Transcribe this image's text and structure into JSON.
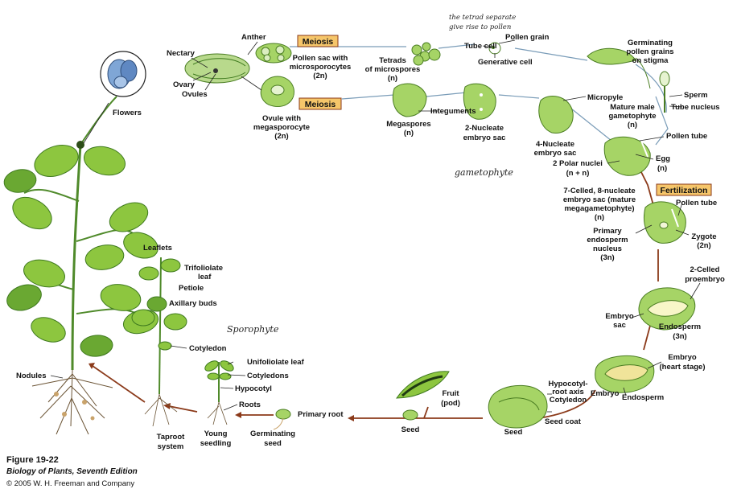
{
  "colors": {
    "plant_green": "#8dc63f",
    "cycle_arrow": "#8b3a1a",
    "highlight_box": "#f6c66a",
    "flower_blue": "#7fa6d6"
  },
  "labels": {
    "flowers": "Flowers",
    "nectary": "Nectary",
    "ovary": "Ovary",
    "ovules": "Ovules",
    "anther": "Anther",
    "meiosis_top": "Meiosis",
    "meiosis_bottom": "Meiosis",
    "pollen_sac_1": "Pollen sac with",
    "pollen_sac_2": "microsporocytes",
    "pollen_sac_3": "(2n)",
    "ovule_1": "Ovule with",
    "ovule_2": "megasporocyte",
    "ovule_3": "(2n)",
    "tetrads_1": "Tetrads",
    "tetrads_2": "of microspores",
    "tetrads_3": "(n)",
    "tube_cell": "Tube cell",
    "pollen_grain": "Pollen grain",
    "generative_cell": "Generative cell",
    "germ_1": "Germinating",
    "germ_2": "pollen grains",
    "germ_3": "on stigma",
    "sperm": "Sperm",
    "tube_nucleus": "Tube nucleus",
    "mature_male_1": "Mature male",
    "mature_male_2": "gametophyte",
    "mature_male_3": "(n)",
    "integuments": "Integuments",
    "megaspores_1": "Megaspores",
    "megaspores_2": "(n)",
    "two_nucleate_1": "2-Nucleate",
    "two_nucleate_2": "embryo sac",
    "micropyle": "Micropyle",
    "four_nucleate_1": "4-Nucleate",
    "four_nucleate_2": "embryo sac",
    "pollen_tube_1": "Pollen tube",
    "egg_1": "Egg",
    "egg_2": "(n)",
    "polar_1": "2 Polar nuclei",
    "polar_2": "(n + n)",
    "fertilization": "Fertilization",
    "pollen_tube_2": "Pollen tube",
    "seven_1": "7-Celled, 8-nucleate",
    "seven_2": "embryo sac (mature",
    "seven_3": "megagametophyte)",
    "seven_4": "(n)",
    "primary_endo_1": "Primary",
    "primary_endo_2": "endosperm",
    "primary_endo_3": "nucleus",
    "primary_endo_4": "(3n)",
    "zygote_1": "Zygote",
    "zygote_2": "(2n)",
    "proembryo_1": "2-Celled",
    "proembryo_2": "proembryo",
    "embryo_sac_1": "Embryo",
    "embryo_sac_2": "sac",
    "endosperm_3n_1": "Endosperm",
    "endosperm_3n_2": "(3n)",
    "embryo_heart_1": "Embryo",
    "embryo_heart_2": "(heart stage)",
    "embryo": "Embryo",
    "endosperm": "Endosperm",
    "hypocotyl_axis_1": "Hypocotyl-",
    "hypocotyl_axis_2": "root axis",
    "cotyledon": "Cotyledon",
    "seed_coat": "Seed coat",
    "seed_big": "Seed",
    "seed_small": "Seed",
    "fruit_1": "Fruit",
    "fruit_2": "(pod)",
    "primary_root": "Primary root",
    "germ_seed_1": "Germinating",
    "germ_seed_2": "seed",
    "unifoliolate": "Unifoliolate leaf",
    "cotyledons": "Cotyledons",
    "hypocotyl": "Hypocotyl",
    "roots": "Roots",
    "young_1": "Young",
    "young_2": "seedling",
    "leaflets": "Leaflets",
    "trifoliolate_1": "Trifoliolate",
    "trifoliolate_2": "leaf",
    "petiole": "Petiole",
    "axillary": "Axillary buds",
    "cotyledon_plant": "Cotyledon",
    "taproot_1": "Taproot",
    "taproot_2": "system",
    "nodules": "Nodules"
  },
  "handwritten": {
    "tetrad_note_1": "the tetrad separate",
    "tetrad_note_2": "give rise to pollen",
    "gametophyte": "gametophyte",
    "sporophyte": "Sporophyte"
  },
  "figure": {
    "title": "Figure 19-22",
    "book": "Biology of Plants, Seventh Edition",
    "copyright": "© 2005 W. H. Freeman and Company"
  }
}
